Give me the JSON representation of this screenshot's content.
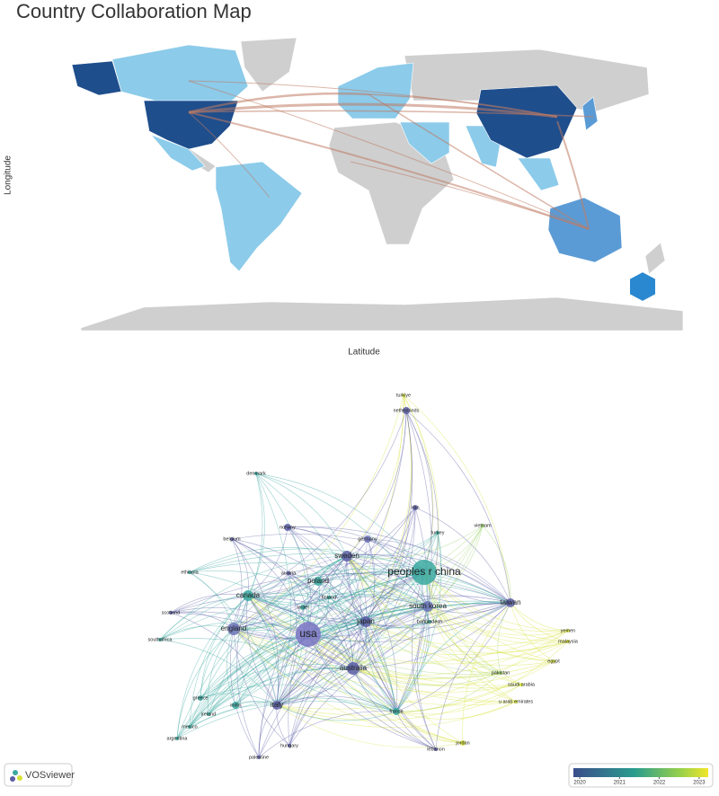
{
  "map": {
    "title": "Country Collaboration Map",
    "y_axis_label": "Longitude",
    "x_axis_label": "Latitude"
  },
  "network": {
    "nodes": [
      {
        "label": "turkiye"
      },
      {
        "label": "netherlands"
      },
      {
        "label": "denmark"
      },
      {
        "label": "iran"
      },
      {
        "label": "vietnam"
      },
      {
        "label": "norway"
      },
      {
        "label": "turkey"
      },
      {
        "label": "belgium"
      },
      {
        "label": "germany"
      },
      {
        "label": "sweden"
      },
      {
        "label": "peoples r china"
      },
      {
        "label": "austria"
      },
      {
        "label": "ethiopia"
      },
      {
        "label": "poland"
      },
      {
        "label": "finland"
      },
      {
        "label": "canada"
      },
      {
        "label": "israel"
      },
      {
        "label": "taiwan"
      },
      {
        "label": "south korea"
      },
      {
        "label": "scotland"
      },
      {
        "label": "japan"
      },
      {
        "label": "bangladesh"
      },
      {
        "label": "england"
      },
      {
        "label": "usa"
      },
      {
        "label": "yemen"
      },
      {
        "label": "malaysia"
      },
      {
        "label": "southafrica"
      },
      {
        "label": "australia"
      },
      {
        "label": "egypt"
      },
      {
        "label": "pakistan"
      },
      {
        "label": "saudi arabia"
      },
      {
        "label": "greece"
      },
      {
        "label": "india"
      },
      {
        "label": "italy"
      },
      {
        "label": "u arab emirates"
      },
      {
        "label": "france"
      },
      {
        "label": "ireland"
      },
      {
        "label": "mexico"
      },
      {
        "label": "argentina"
      },
      {
        "label": "jordan"
      },
      {
        "label": "hungary"
      },
      {
        "label": "lebanon"
      },
      {
        "label": "palestine"
      }
    ],
    "legend": {
      "ticks": [
        2020,
        2021,
        2022,
        2023
      ]
    }
  },
  "footer": {
    "brand": "VOSviewer"
  }
}
